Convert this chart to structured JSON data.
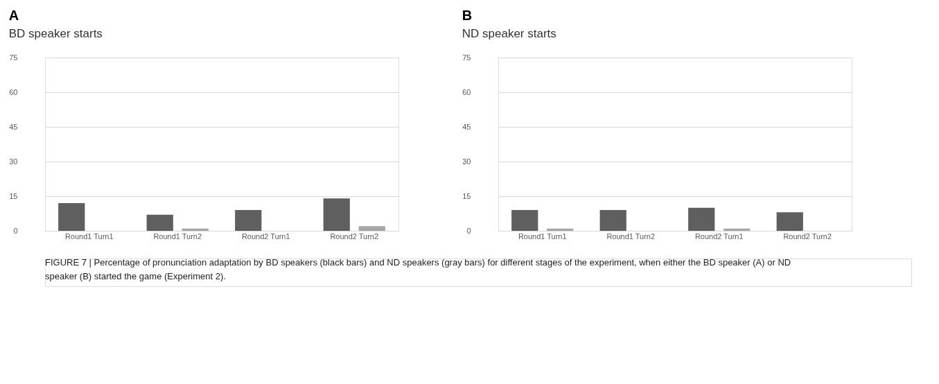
{
  "chart_data": [
    {
      "type": "bar",
      "title": "A",
      "subtitle": "BD speaker starts",
      "categories": [
        "Round1 Turn1",
        "Round1 Turn2",
        "Round2 Turn1",
        "Round2 Turn2"
      ],
      "series": [
        {
          "color": "#5f5f5f",
          "values": [
            12,
            7,
            9,
            14
          ]
        },
        {
          "color": "#a6a6a6",
          "values": [
            0,
            1,
            0,
            2
          ]
        }
      ],
      "ylim": [
        0,
        75
      ],
      "yticks": [
        0,
        15,
        30,
        45,
        60,
        75
      ],
      "grid": "y",
      "legend": false
    },
    {
      "type": "bar",
      "title": "B",
      "subtitle": "ND speaker starts",
      "categories": [
        "Round1 Turn1",
        "Round1 Turn2",
        "Round2 Turn1",
        "Round2 Turn2"
      ],
      "series": [
        {
          "color": "#5f5f5f",
          "values": [
            9,
            9,
            10,
            8
          ]
        },
        {
          "color": "#a6a6a6",
          "values": [
            1,
            0,
            1,
            0
          ]
        }
      ],
      "ylim": [
        0,
        75
      ],
      "yticks": [
        0,
        15,
        30,
        45,
        60,
        75
      ],
      "grid": "y",
      "legend": false,
      "annotations": [
        "FIGURE 7 | Percentage of pronunciation adaptation by BD speakers (black bars) and ND speakers (gray bars) for different stages of the experiment, when either the BD speaker (A) or ND speaker (B) started the game (Experiment 2)."
      ]
    }
  ]
}
